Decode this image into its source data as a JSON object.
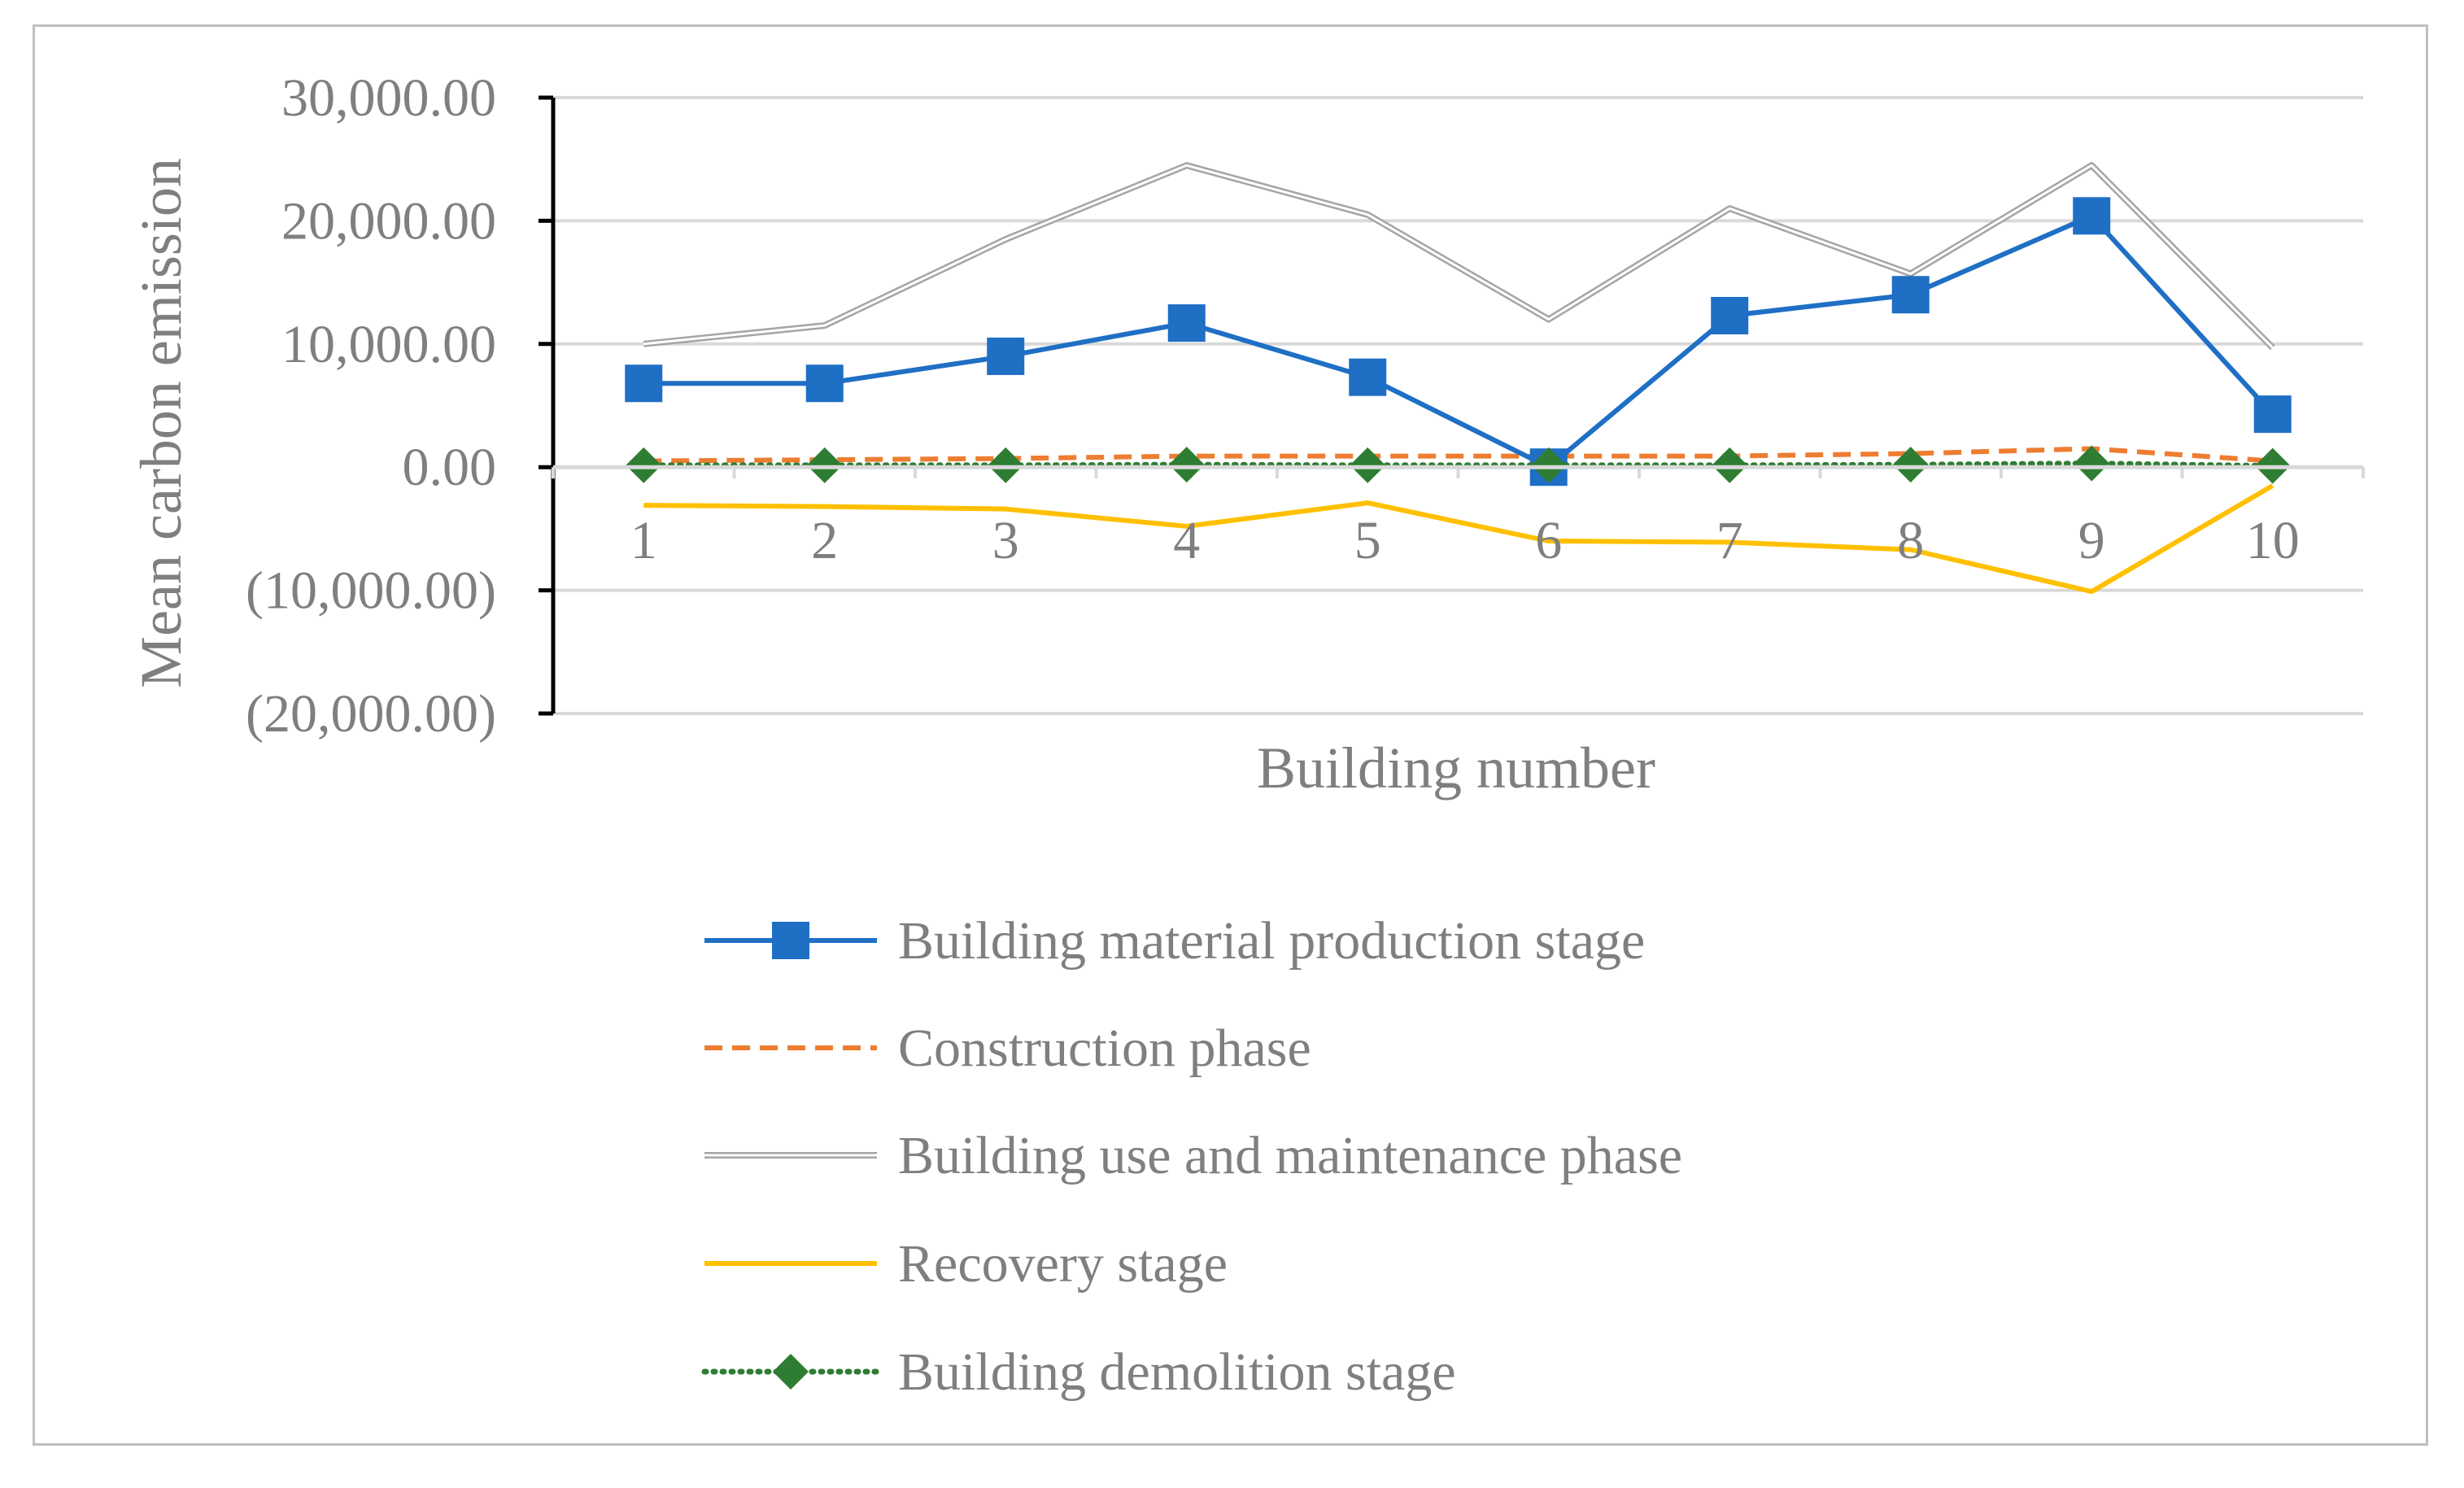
{
  "chart_data": {
    "type": "line",
    "title": "",
    "xlabel": "Building number",
    "ylabel": "Mean carbon emission",
    "ylim": [
      -20000,
      30000
    ],
    "yticks": [
      30000,
      20000,
      10000,
      0,
      -10000,
      -20000
    ],
    "ytick_labels": [
      "30,000.00",
      "20,000.00",
      "10,000.00",
      "0.00",
      "(10,000.00)",
      "(20,000.00)"
    ],
    "categories": [
      "1",
      "2",
      "3",
      "4",
      "5",
      "6",
      "7",
      "8",
      "9",
      "10"
    ],
    "grid": true,
    "legend_position": "bottom",
    "series": [
      {
        "name": "Building material production stage",
        "values": [
          6800,
          6800,
          9000,
          11700,
          7300,
          0,
          12300,
          14000,
          20400,
          4300
        ],
        "color": "#1f6fc5",
        "dash": "solid",
        "marker": "square"
      },
      {
        "name": "Construction phase",
        "values": [
          500,
          600,
          700,
          900,
          900,
          900,
          900,
          1100,
          1500,
          500
        ],
        "color": "#ed7d31",
        "dash": "dashed",
        "marker": "none"
      },
      {
        "name": "Building use and maintenance phase",
        "values": [
          10000,
          11500,
          18500,
          24500,
          20500,
          12000,
          21000,
          15700,
          24500,
          9700
        ],
        "color": "#a5a5a5",
        "dash": "double",
        "marker": "none"
      },
      {
        "name": "Recovery stage",
        "values": [
          -3100,
          -3200,
          -3400,
          -4800,
          -2900,
          -6000,
          -6100,
          -6700,
          -10100,
          -1500
        ],
        "color": "#ffc000",
        "dash": "solid",
        "marker": "none"
      },
      {
        "name": "Building demolition stage",
        "values": [
          150,
          150,
          150,
          200,
          150,
          150,
          150,
          200,
          300,
          100
        ],
        "color": "#2e7d32",
        "dash": "dotted",
        "marker": "diamond"
      }
    ]
  }
}
